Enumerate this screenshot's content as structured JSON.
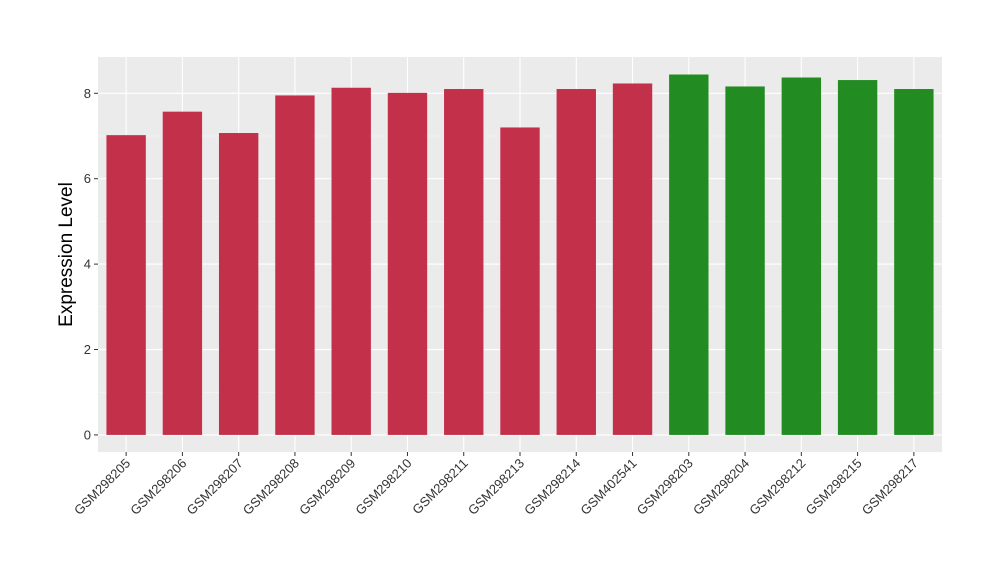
{
  "chart_data": {
    "type": "bar",
    "title": "",
    "xlabel": "",
    "ylabel": "Expression Level",
    "ylim": [
      -0.4,
      8.85
    ],
    "yticks": [
      0,
      2,
      4,
      6,
      8
    ],
    "grid": true,
    "legend": "none",
    "background": "#EBEBEB",
    "categories": [
      "GSM298205",
      "GSM298206",
      "GSM298207",
      "GSM298208",
      "GSM298209",
      "GSM298210",
      "GSM298211",
      "GSM298213",
      "GSM298214",
      "GSM402541",
      "GSM298203",
      "GSM298204",
      "GSM298212",
      "GSM298215",
      "GSM298217"
    ],
    "values": [
      7.02,
      7.57,
      7.07,
      7.95,
      8.13,
      8.01,
      8.1,
      7.2,
      8.1,
      8.23,
      8.44,
      8.16,
      8.37,
      8.31,
      8.1
    ],
    "colors": [
      "#C3304A",
      "#C3304A",
      "#C3304A",
      "#C3304A",
      "#C3304A",
      "#C3304A",
      "#C3304A",
      "#C3304A",
      "#C3304A",
      "#C3304A",
      "#228B22",
      "#228B22",
      "#228B22",
      "#228B22",
      "#228B22"
    ]
  }
}
